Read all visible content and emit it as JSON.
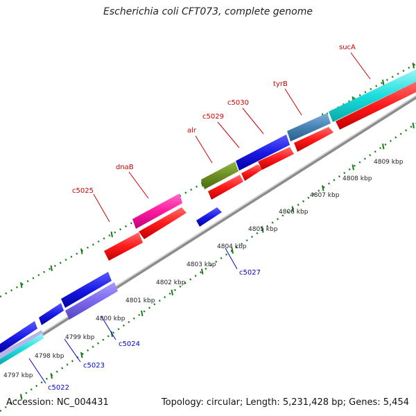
{
  "title": "Escherichia coli CFT073, complete genome",
  "footer": {
    "accession": "Accession: NC_004431",
    "summary": "Topology: circular; Length: 5,231,428 bp; Genes: 5,454"
  },
  "scale_labels": [
    "4797 kbp",
    "4798 kbp",
    "4799 kbp",
    "4800 kbp",
    "4801 kbp",
    "4802 kbp",
    "4803 kbp",
    "4804 kbp",
    "4805 kbp",
    "4806 kbp",
    "4807 kbp",
    "4808 kbp",
    "4809 kbp"
  ],
  "top_gene_labels": [
    "c5025",
    "dnaB",
    "alr",
    "c5029",
    "c5030",
    "tyrB",
    "sucA"
  ],
  "bottom_gene_labels": [
    "c5022",
    "c5023",
    "c5024",
    "c5027"
  ],
  "colors": {
    "forward_label": "#cc0000",
    "reverse_label": "#0000cc",
    "cds_red": "#ff1a1a",
    "cds_blue": "#1a1ae6",
    "cds_magenta": "#ff1aa0",
    "cds_olive": "#6b8e23",
    "cds_steelblue": "#4682b4",
    "cds_cyan": "#1adede",
    "cds_slate": "#7b68ee",
    "backbone": "#8c8c8c",
    "ticks": "#1a7a1a"
  }
}
